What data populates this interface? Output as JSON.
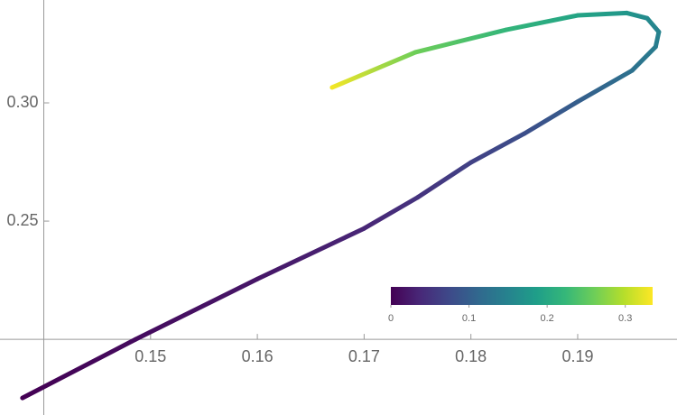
{
  "chart_data": {
    "type": "line",
    "x": [
      0.138,
      0.1486,
      0.16,
      0.17,
      0.175,
      0.18,
      0.185,
      0.19,
      0.1951,
      0.1973,
      0.1976,
      0.1965,
      0.1946,
      0.19,
      0.1833,
      0.1748,
      0.167
    ],
    "values": [
      0.1752,
      0.2,
      0.2255,
      0.2469,
      0.26,
      0.2748,
      0.287,
      0.3005,
      0.3137,
      0.3237,
      0.33,
      0.3358,
      0.338,
      0.337,
      0.3309,
      0.3214,
      0.3065
    ],
    "color_values": [
      0,
      0.01,
      0.02,
      0.035,
      0.05,
      0.065,
      0.08,
      0.1,
      0.125,
      0.14,
      0.15,
      0.16,
      0.175,
      0.195,
      0.22,
      0.26,
      0.33
    ],
    "xlim": [
      0.1359,
      0.1993
    ],
    "ylim": [
      0.168,
      0.3435
    ],
    "xticks": [
      0.15,
      0.16,
      0.17,
      0.18,
      0.19
    ],
    "yticks": [
      {
        "value": 0.25,
        "label": "0.25"
      },
      {
        "value": 0.3,
        "label": "0.30"
      }
    ],
    "axes_origin": [
      0.14,
      0.2
    ],
    "colorbar": {
      "lim": [
        0,
        0.335
      ],
      "ticks": [
        0,
        0.1,
        0.2,
        0.3
      ],
      "colormap": [
        "#440154",
        "#482878",
        "#3e4989",
        "#31688e",
        "#26828e",
        "#1f9e89",
        "#35b779",
        "#6ece58",
        "#b5de2b",
        "#fde725"
      ]
    }
  }
}
